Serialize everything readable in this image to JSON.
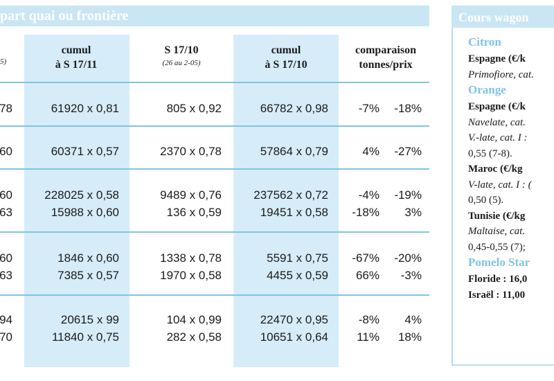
{
  "main": {
    "title": "part quai ou frontière",
    "header_fragment": "5)",
    "headers": [
      {
        "title": "cumul",
        "title2": "à S 17/11",
        "sub": ""
      },
      {
        "title": "S 17/10",
        "title2": "",
        "sub": "(26 au 2-05)"
      },
      {
        "title": "cumul",
        "title2": "à S 17/10",
        "sub": ""
      },
      {
        "title": "comparaison",
        "title2": "tonnes/prix",
        "sub": ""
      }
    ],
    "rows": [
      {
        "lead": "78",
        "c1": "61920 x 0,81",
        "c2": "805 x 0,92",
        "c3": "66782 x 0,98",
        "pt": "-7%",
        "pp": "-18%"
      },
      {
        "lead": "60",
        "c1": "60371 x 0,57",
        "c2": "2370 x 0,78",
        "c3": "57864 x 0,79",
        "pt": "4%",
        "pp": "-27%"
      },
      {
        "lead": "60",
        "c1": "228025 x 0,58",
        "c2": "9489 x 0,76",
        "c3": "237562 x 0,72",
        "pt": "-4%",
        "pp": "-19%"
      },
      {
        "lead": "63",
        "c1": "15988 x 0,60",
        "c2": "136 x 0,59",
        "c3": "19451 x 0,58",
        "pt": "-18%",
        "pp": "3%"
      },
      {
        "lead": "60",
        "c1": "1846 x 0,60",
        "c2": "1338 x 0,78",
        "c3": "5591 x 0,75",
        "pt": "-67%",
        "pp": "-20%"
      },
      {
        "lead": "63",
        "c1": "7385 x 0,57",
        "c2": "1970 x 0,58",
        "c3": "4455 x 0,59",
        "pt": "66%",
        "pp": "-3%"
      },
      {
        "lead": "94",
        "c1": "20615 x 99",
        "c2": "104 x 0,99",
        "c3": "22470 x 0,95",
        "pt": "-8%",
        "pp": "4%"
      },
      {
        "lead": "70",
        "c1": "11840 x 0,75",
        "c2": "282 x 0,58",
        "c3": "10651 x 0,64",
        "pt": "11%",
        "pp": "18%"
      }
    ]
  },
  "side": {
    "title": "Cours wagon",
    "lines": [
      {
        "type": "cat",
        "text": "Citron"
      },
      {
        "type": "bold",
        "text": "Espagne (€/k"
      },
      {
        "type": "ital",
        "text": "Primofiore, cat."
      },
      {
        "type": "cat",
        "text": "Orange"
      },
      {
        "type": "bold",
        "text": "Espagne (€/k"
      },
      {
        "type": "ital",
        "text": "Navelate, cat."
      },
      {
        "type": "ital",
        "text": "V.-late, cat. I :"
      },
      {
        "type": "plain",
        "text": "0,55 (7-8)."
      },
      {
        "type": "bold",
        "text": "Maroc (€/kg"
      },
      {
        "type": "ital",
        "text": "V-late, cat. I : ("
      },
      {
        "type": "plain",
        "text": "0,50 (5)."
      },
      {
        "type": "bold",
        "text": "Tunisie (€/kg"
      },
      {
        "type": "ital",
        "text": "Maltaise,  cat."
      },
      {
        "type": "plain",
        "text": "0,45-0,55 (7);"
      },
      {
        "type": "cat",
        "text": "Pomelo Star"
      },
      {
        "type": "bold",
        "text": "Floride : 16,0"
      },
      {
        "type": "bold",
        "text": "Israël : 11,00"
      }
    ]
  }
}
